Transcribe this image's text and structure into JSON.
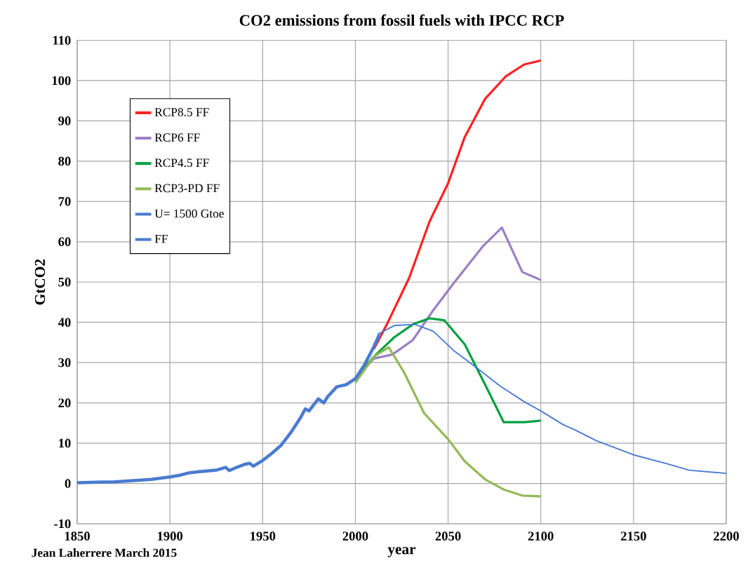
{
  "chart_data": {
    "type": "line",
    "title": "CO2 emissions from fossil fuels with IPCC RCP",
    "xlabel": "year",
    "ylabel": "GtCO2",
    "annotations": [
      "Jean Laherrere March 2015"
    ],
    "xlim": [
      1850,
      2200
    ],
    "ylim": [
      -10,
      110
    ],
    "xticks": [
      1850,
      1900,
      1950,
      2000,
      2050,
      2100,
      2150,
      2200
    ],
    "yticks": [
      -10,
      0,
      10,
      20,
      30,
      40,
      50,
      60,
      70,
      80,
      90,
      100,
      110
    ],
    "grid": true,
    "legend": "top left",
    "marker": "none",
    "line_style": "solid",
    "series": [
      {
        "name": "RCP8.5 FF",
        "color": "#ff2020",
        "x": [
          2010,
          2017,
          2029,
          2040,
          2050,
          2059,
          2070,
          2081,
          2091,
          2100
        ],
        "values": [
          33.4,
          39.5,
          51,
          65,
          74.5,
          86,
          95.5,
          101,
          104,
          105
        ]
      },
      {
        "name": "RCP6 FF",
        "color": "#9b7fc4",
        "x": [
          2000,
          2010,
          2020,
          2031,
          2042,
          2053,
          2069,
          2079,
          2090,
          2100
        ],
        "values": [
          26,
          31,
          32,
          35.6,
          43,
          49.7,
          59,
          63.5,
          52.5,
          50.5
        ]
      },
      {
        "name": "RCP4.5 FF",
        "color": "#00a040",
        "x": [
          2000,
          2010,
          2021,
          2031,
          2040,
          2048,
          2059,
          2070,
          2080,
          2091,
          2100
        ],
        "values": [
          26,
          31.5,
          36.3,
          39.5,
          41,
          40.5,
          34.5,
          24.5,
          15.2,
          15.2,
          15.6
        ]
      },
      {
        "name": "RCP3-PD FF",
        "color": "#92b956",
        "x": [
          2000,
          2010,
          2018,
          2026,
          2037,
          2050,
          2059,
          2070,
          2080,
          2090,
          2100
        ],
        "values": [
          25,
          31.5,
          33.8,
          27.8,
          17.5,
          11,
          5.5,
          1,
          -1.5,
          -3,
          -3.2
        ]
      },
      {
        "name": "U= 1500 Gtoe",
        "color": "#4a7bd0",
        "x": [
          2012,
          2021,
          2032,
          2042,
          2053,
          2066,
          2078,
          2091,
          2100,
          2112,
          2118,
          2130,
          2150,
          2168,
          2180,
          2200
        ],
        "values": [
          37,
          39.2,
          39.5,
          37.8,
          33,
          28.5,
          24.2,
          20.3,
          18,
          14.6,
          13.4,
          10.6,
          7.1,
          4.9,
          3.3,
          2.5
        ]
      },
      {
        "name": "FF",
        "color": "#4a7bd0",
        "x": [
          1850,
          1860,
          1870,
          1880,
          1890,
          1900,
          1905,
          1910,
          1915,
          1920,
          1925,
          1930,
          1932,
          1935,
          1940,
          1943,
          1945,
          1950,
          1955,
          1960,
          1965,
          1970,
          1973,
          1975,
          1980,
          1983,
          1985,
          1990,
          1995,
          2000,
          2005,
          2010,
          2013
        ],
        "values": [
          0.2,
          0.3,
          0.4,
          0.7,
          1.0,
          1.6,
          2.0,
          2.6,
          2.9,
          3.1,
          3.3,
          4.0,
          3.2,
          3.8,
          4.7,
          5.0,
          4.3,
          5.7,
          7.5,
          9.5,
          12.5,
          16,
          18.5,
          18,
          21,
          20,
          21.5,
          24,
          24.5,
          26,
          29.5,
          34,
          37
        ]
      }
    ]
  }
}
